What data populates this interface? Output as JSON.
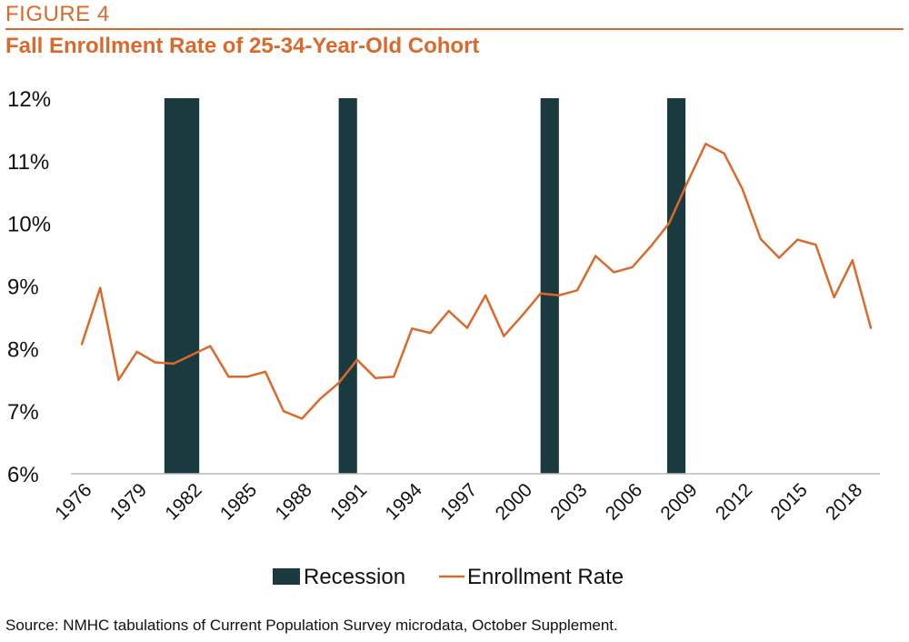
{
  "figure_label": "FIGURE 4",
  "title": "Fall Enrollment Rate of 25-34-Year-Old Cohort",
  "source": "Source: NMHC tabulations of Current Population Survey microdata, October Supplement.",
  "colors": {
    "accent": "#d96a2b",
    "recession": "#1b3a40",
    "text": "#111111",
    "axis": "#bbbbbb"
  },
  "chart_data": {
    "type": "line",
    "ylim": [
      6,
      12
    ],
    "y_ticks": [
      "6%",
      "7%",
      "8%",
      "9%",
      "10%",
      "11%",
      "12%"
    ],
    "x_ticks": [
      "1976",
      "1979",
      "1982",
      "1985",
      "1988",
      "1991",
      "1994",
      "1997",
      "2000",
      "2003",
      "2006",
      "2009",
      "2012",
      "2015",
      "2018"
    ],
    "legend": {
      "position": "bottom",
      "items": [
        "Recession",
        "Enrollment Rate"
      ]
    },
    "recessions": [
      {
        "start": 1980.5,
        "end": 1982.4
      },
      {
        "start": 1990.0,
        "end": 1991.0
      },
      {
        "start": 2001.0,
        "end": 2002.0
      },
      {
        "start": 2007.9,
        "end": 2008.9
      }
    ],
    "series": [
      {
        "name": "Enrollment Rate",
        "x": [
          1976,
          1977,
          1978,
          1979,
          1980,
          1981,
          1982,
          1983,
          1984,
          1985,
          1986,
          1987,
          1988,
          1989,
          1990,
          1991,
          1992,
          1993,
          1994,
          1995,
          1996,
          1997,
          1998,
          1999,
          2000,
          2001,
          2002,
          2003,
          2004,
          2005,
          2006,
          2007,
          2008,
          2009,
          2010,
          2011,
          2012,
          2013,
          2014,
          2015,
          2016,
          2017,
          2018,
          2019
        ],
        "values": [
          8.07,
          8.97,
          7.5,
          7.95,
          7.78,
          7.76,
          7.9,
          8.04,
          7.55,
          7.55,
          7.63,
          7.0,
          6.88,
          7.2,
          7.45,
          7.82,
          7.53,
          7.55,
          8.32,
          8.25,
          8.6,
          8.33,
          8.85,
          8.2,
          8.53,
          8.88,
          8.85,
          8.93,
          9.48,
          9.22,
          9.3,
          9.63,
          10.0,
          10.65,
          11.27,
          11.12,
          10.55,
          9.75,
          9.45,
          9.74,
          9.66,
          8.82,
          9.41,
          8.33
        ]
      }
    ]
  }
}
